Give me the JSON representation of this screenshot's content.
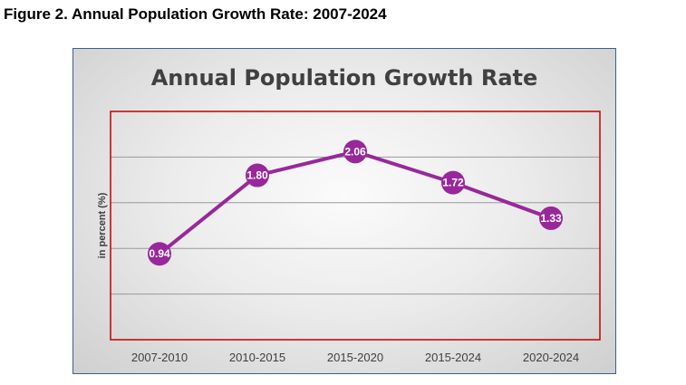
{
  "figure_caption": "Figure 2. Annual Population Growth Rate: 2007-2024",
  "colors": {
    "line": "#98289a",
    "marker": "#98289a",
    "plot_border": "#c00000",
    "gridline": "#9a9a9a",
    "frame_border": "#3b5f8f"
  },
  "chart_data": {
    "type": "line",
    "title": "Annual Population Growth Rate",
    "xlabel": "",
    "ylabel": "in percent (%)",
    "categories": [
      "2007-2010",
      "2010-2015",
      "2015-2020",
      "2015-2024",
      "2020-2024"
    ],
    "series": [
      {
        "values": [
          0.94,
          1.8,
          2.06,
          1.72,
          1.33
        ],
        "data_labels": [
          "0.94",
          "1.80",
          "2.06",
          "1.72",
          "1.33"
        ]
      }
    ],
    "ylim": [
      0,
      2.5
    ],
    "grid": true,
    "legend": "none"
  }
}
